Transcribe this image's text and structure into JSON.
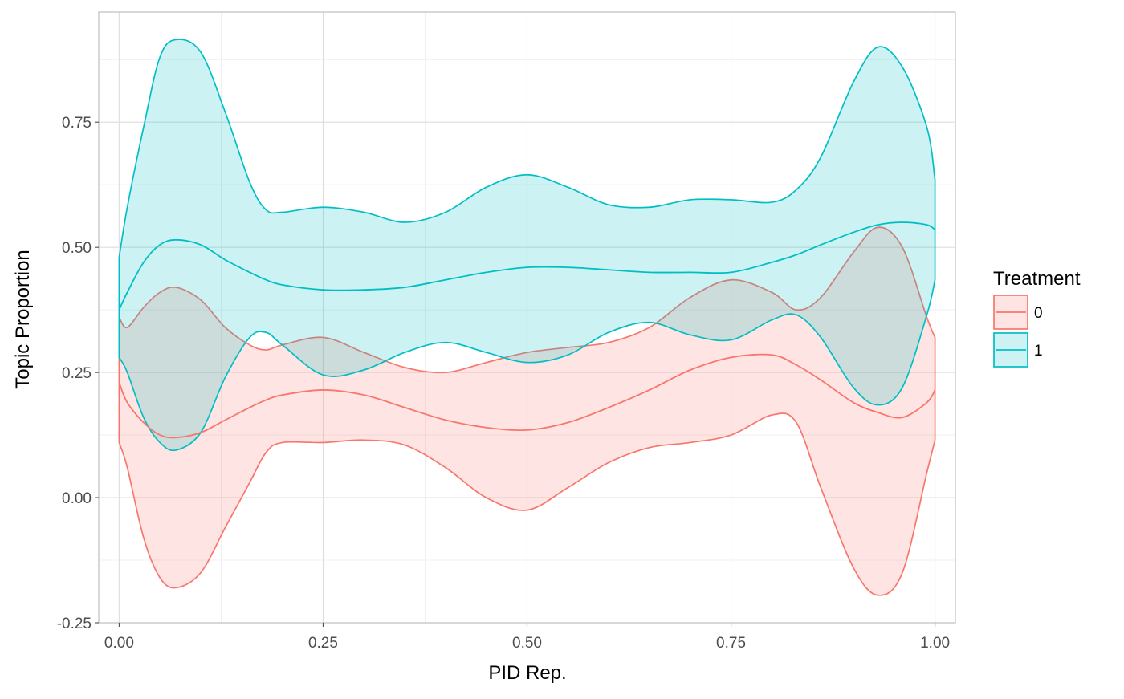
{
  "chart_data": {
    "type": "area",
    "subtype": "ribbon-with-center-line",
    "title": "",
    "xlabel": "PID Rep.",
    "ylabel": "Topic Proportion",
    "xlim": [
      -0.025,
      1.025
    ],
    "ylim": [
      -0.25,
      0.97
    ],
    "x_ticks": [
      0.0,
      0.25,
      0.5,
      0.75,
      1.0
    ],
    "x_tick_labels": [
      "0.00",
      "0.25",
      "0.50",
      "0.75",
      "1.00"
    ],
    "y_ticks": [
      -0.25,
      0.0,
      0.25,
      0.5,
      0.75
    ],
    "y_tick_labels": [
      "-0.25",
      "0.00",
      "0.25",
      "0.50",
      "0.75"
    ],
    "grid": true,
    "legend": {
      "title": "Treatment",
      "position": "right"
    },
    "series": [
      {
        "name": "0",
        "color": "#F8766D",
        "fill": "#F8766D",
        "x": [
          0.0,
          0.01,
          0.03,
          0.05,
          0.07,
          0.1,
          0.13,
          0.16,
          0.18,
          0.2,
          0.25,
          0.3,
          0.35,
          0.4,
          0.45,
          0.5,
          0.55,
          0.6,
          0.65,
          0.7,
          0.75,
          0.8,
          0.83,
          0.86,
          0.9,
          0.93,
          0.96,
          0.99,
          1.0
        ],
        "mean": [
          0.23,
          0.19,
          0.15,
          0.125,
          0.12,
          0.13,
          0.155,
          0.18,
          0.195,
          0.205,
          0.215,
          0.205,
          0.18,
          0.155,
          0.14,
          0.135,
          0.15,
          0.18,
          0.215,
          0.255,
          0.28,
          0.285,
          0.265,
          0.235,
          0.19,
          0.17,
          0.16,
          0.19,
          0.215
        ],
        "upper": [
          0.36,
          0.34,
          0.38,
          0.41,
          0.42,
          0.395,
          0.34,
          0.305,
          0.295,
          0.305,
          0.32,
          0.29,
          0.26,
          0.25,
          0.27,
          0.29,
          0.3,
          0.31,
          0.34,
          0.4,
          0.435,
          0.41,
          0.375,
          0.4,
          0.49,
          0.54,
          0.5,
          0.36,
          0.32
        ],
        "lower": [
          0.11,
          0.06,
          -0.08,
          -0.16,
          -0.18,
          -0.15,
          -0.06,
          0.03,
          0.09,
          0.11,
          0.11,
          0.115,
          0.105,
          0.06,
          0.0,
          -0.025,
          0.02,
          0.07,
          0.1,
          0.11,
          0.125,
          0.165,
          0.15,
          0.02,
          -0.14,
          -0.195,
          -0.15,
          0.05,
          0.115
        ]
      },
      {
        "name": "1",
        "color": "#00BFC4",
        "fill": "#00BFC4",
        "x": [
          0.0,
          0.01,
          0.03,
          0.05,
          0.07,
          0.1,
          0.13,
          0.16,
          0.18,
          0.2,
          0.25,
          0.3,
          0.35,
          0.4,
          0.45,
          0.5,
          0.55,
          0.6,
          0.65,
          0.7,
          0.75,
          0.8,
          0.83,
          0.86,
          0.9,
          0.93,
          0.96,
          0.99,
          1.0
        ],
        "mean": [
          0.375,
          0.41,
          0.47,
          0.505,
          0.515,
          0.505,
          0.475,
          0.45,
          0.435,
          0.425,
          0.415,
          0.415,
          0.42,
          0.435,
          0.45,
          0.46,
          0.46,
          0.455,
          0.45,
          0.45,
          0.45,
          0.47,
          0.485,
          0.505,
          0.53,
          0.545,
          0.55,
          0.545,
          0.535
        ],
        "upper": [
          0.48,
          0.58,
          0.74,
          0.88,
          0.915,
          0.89,
          0.77,
          0.63,
          0.575,
          0.57,
          0.58,
          0.57,
          0.55,
          0.57,
          0.62,
          0.645,
          0.62,
          0.585,
          0.58,
          0.595,
          0.595,
          0.59,
          0.615,
          0.68,
          0.83,
          0.9,
          0.86,
          0.74,
          0.635
        ],
        "lower": [
          0.28,
          0.25,
          0.16,
          0.11,
          0.095,
          0.13,
          0.24,
          0.32,
          0.33,
          0.305,
          0.245,
          0.255,
          0.29,
          0.31,
          0.29,
          0.27,
          0.285,
          0.33,
          0.35,
          0.325,
          0.315,
          0.355,
          0.365,
          0.32,
          0.22,
          0.185,
          0.22,
          0.365,
          0.435
        ]
      }
    ]
  }
}
